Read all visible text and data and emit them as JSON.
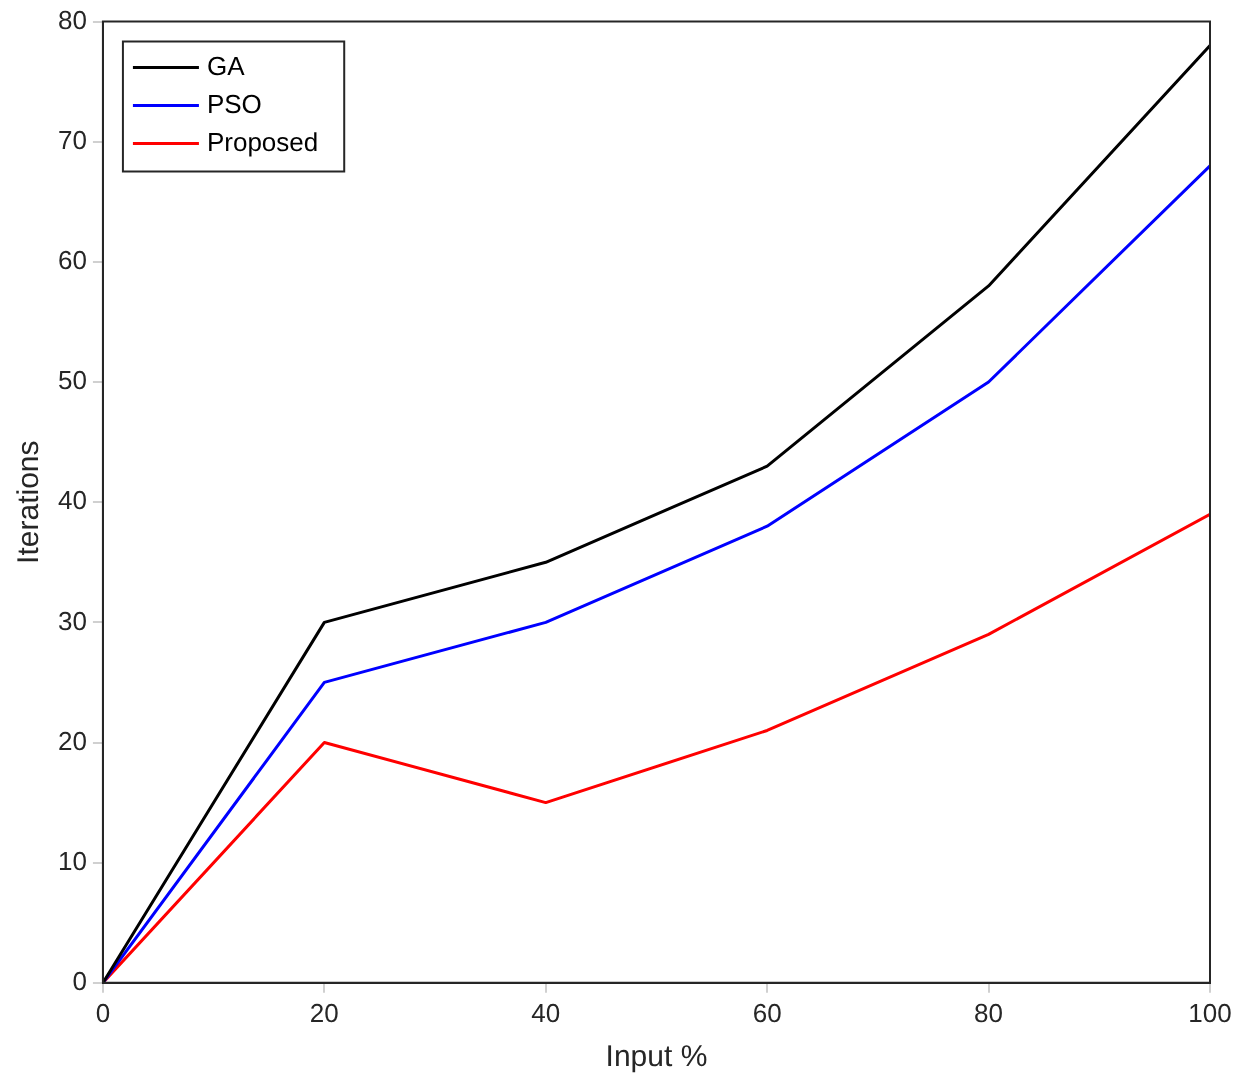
{
  "chart_data": {
    "type": "line",
    "xlabel": "Input %",
    "ylabel": "Iterations",
    "x": [
      0,
      20,
      40,
      60,
      80,
      100
    ],
    "series": [
      {
        "name": "GA",
        "color": "#000000",
        "values": [
          0,
          30,
          35,
          43,
          58,
          78
        ]
      },
      {
        "name": "PSO",
        "color": "#0000ff",
        "values": [
          0,
          25,
          30,
          38,
          50,
          68
        ]
      },
      {
        "name": "Proposed",
        "color": "#ff0000",
        "values": [
          0,
          20,
          15,
          21,
          29,
          39
        ]
      }
    ],
    "xlim": [
      0,
      100
    ],
    "xticks": [
      0,
      20,
      40,
      60,
      80,
      100
    ],
    "ylim": [
      0,
      80
    ],
    "yticks": [
      0,
      10,
      20,
      30,
      40,
      50,
      60,
      70,
      80
    ],
    "grid": false,
    "legend": "top left",
    "marker": "none",
    "line_style": "solid"
  }
}
